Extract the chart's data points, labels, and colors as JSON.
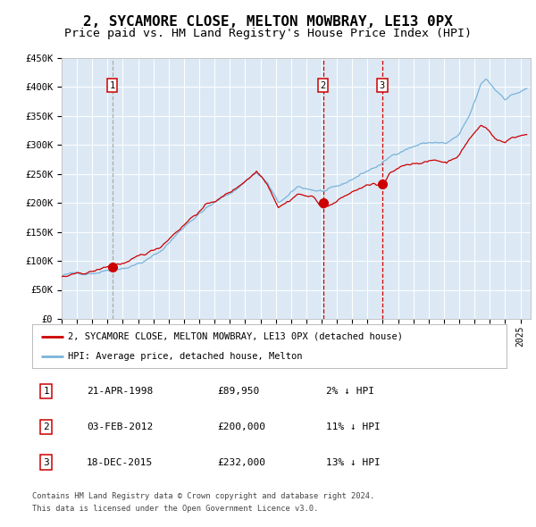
{
  "title": "2, SYCAMORE CLOSE, MELTON MOWBRAY, LE13 0PX",
  "subtitle": "Price paid vs. HM Land Registry's House Price Index (HPI)",
  "title_fontsize": 11.5,
  "subtitle_fontsize": 9.5,
  "plot_bg_color": "#dce9f5",
  "fig_bg_color": "#ffffff",
  "hpi_color": "#7ab3d9",
  "property_color": "#cc0000",
  "sale_marker_color": "#cc0000",
  "vline_color_1": "#aaaaaa",
  "vline_color_23": "#cc0000",
  "ylabel_values": [
    "£0",
    "£50K",
    "£100K",
    "£150K",
    "£200K",
    "£250K",
    "£300K",
    "£350K",
    "£400K",
    "£450K"
  ],
  "ylim": [
    0,
    450000
  ],
  "yticks": [
    0,
    50000,
    100000,
    150000,
    200000,
    250000,
    300000,
    350000,
    400000,
    450000
  ],
  "xstart_year": 1995,
  "xend_year": 2025,
  "sales": [
    {
      "date": "1998-04-21",
      "price": 89950,
      "label": "1"
    },
    {
      "date": "2012-02-03",
      "price": 200000,
      "label": "2"
    },
    {
      "date": "2015-12-18",
      "price": 232000,
      "label": "3"
    }
  ],
  "legend_property": "2, SYCAMORE CLOSE, MELTON MOWBRAY, LE13 0PX (detached house)",
  "legend_hpi": "HPI: Average price, detached house, Melton",
  "footer1": "Contains HM Land Registry data © Crown copyright and database right 2024.",
  "footer2": "This data is licensed under the Open Government Licence v3.0.",
  "table_rows": [
    {
      "label": "1",
      "date": "21-APR-1998",
      "price": "£89,950",
      "pct": "2% ↓ HPI"
    },
    {
      "label": "2",
      "date": "03-FEB-2012",
      "price": "£200,000",
      "pct": "11% ↓ HPI"
    },
    {
      "label": "3",
      "date": "18-DEC-2015",
      "price": "£232,000",
      "pct": "13% ↓ HPI"
    }
  ]
}
